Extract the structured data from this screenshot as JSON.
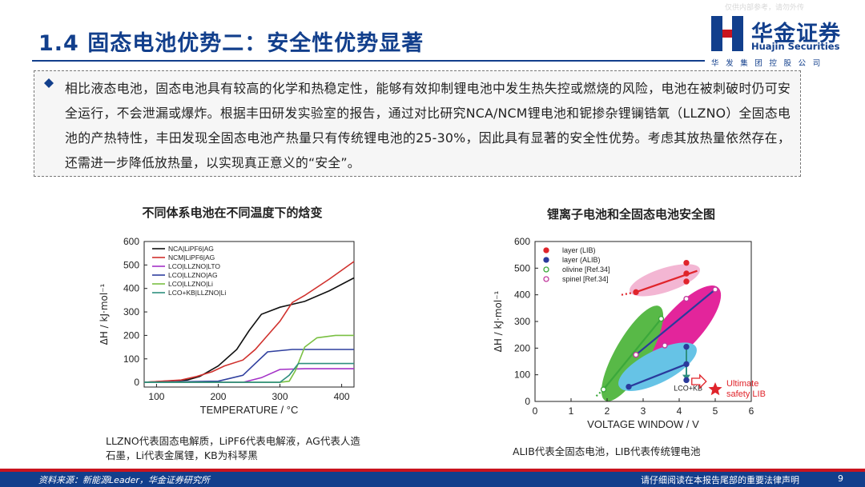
{
  "watermark": "仅供内部参考，请勿外传",
  "title": "1.4 固态电池优势二：安全性优势显著",
  "logo": {
    "cn": "华金证券",
    "en": "Huajin Securities",
    "sub": "华发集团控股公司"
  },
  "body_text": "相比液态电池，固态电池具有较高的化学和热稳定性，能够有效抑制锂电池中发生热失控或燃烧的风险，电池在被刺破时仍可安全运行，不会泄漏或爆炸。根据丰田研发实验室的报告，通过对比研究NCA/NCM锂电池和铌掺杂锂镧锆氧（LLZNO）全固态电池的产热特性，丰田发现全固态电池产热量只有传统锂电池的25-30%，因此具有显著的安全性优势。考虑其放热量依然存在，还需进一步降低放热量，以实现真正意义的“安全”。",
  "colors": {
    "brand": "#123f8c",
    "accent": "#c9141f"
  },
  "chart_data": [
    {
      "type": "line",
      "title": "不同体系电池在不同温度下的焓变",
      "xlabel": "TEMPERATURE / °C",
      "ylabel": "ΔH / kJ·mol⁻¹",
      "xlim": [
        80,
        420
      ],
      "ylim": [
        -20,
        600
      ],
      "xticks": [
        100,
        200,
        300,
        400
      ],
      "yticks": [
        0,
        100,
        200,
        300,
        400,
        500,
        600
      ],
      "legend_position": "top-left",
      "series": [
        {
          "name": "NCA|LiPF6|AG",
          "color": "#111111",
          "x": [
            80,
            150,
            170,
            200,
            230,
            250,
            270,
            300,
            340,
            380,
            420
          ],
          "y": [
            0,
            10,
            25,
            70,
            140,
            220,
            290,
            320,
            345,
            390,
            445
          ]
        },
        {
          "name": "NCM|LiPF6|AG",
          "color": "#d0312d",
          "x": [
            80,
            140,
            165,
            190,
            210,
            240,
            260,
            280,
            300,
            320,
            340,
            380,
            420
          ],
          "y": [
            0,
            10,
            25,
            45,
            70,
            95,
            140,
            200,
            260,
            340,
            370,
            440,
            515
          ]
        },
        {
          "name": "LCO|LLZNO|LTO",
          "color": "#a431c7",
          "x": [
            80,
            240,
            270,
            300,
            340,
            380,
            420
          ],
          "y": [
            0,
            0,
            20,
            55,
            58,
            58,
            58
          ]
        },
        {
          "name": "LCO|LLZNO|AG",
          "color": "#2f3f9e",
          "x": [
            80,
            200,
            240,
            260,
            280,
            320,
            360,
            420
          ],
          "y": [
            0,
            5,
            30,
            80,
            130,
            140,
            140,
            140
          ]
        },
        {
          "name": "LCO|LLZNO|Li",
          "color": "#7ac043",
          "x": [
            80,
            300,
            315,
            325,
            340,
            360,
            390,
            420
          ],
          "y": [
            0,
            0,
            5,
            50,
            150,
            190,
            200,
            200
          ]
        },
        {
          "name": "LCO+KB|LLZNO|Li",
          "color": "#2f8f7f",
          "x": [
            80,
            300,
            315,
            330,
            360,
            390,
            420
          ],
          "y": [
            0,
            0,
            30,
            80,
            80,
            80,
            80
          ]
        }
      ],
      "caption": "LLZNO代表固态电解质，LiPF6代表电解液，AG代表人造石墨，Li代表金属锂，KB为科琴黑"
    },
    {
      "type": "scatter",
      "title": "锂离子电池和全固态电池安全图",
      "xlabel": "VOLTAGE WINDOW / V",
      "ylabel": "ΔH / kJ·mol⁻¹",
      "xlim": [
        0,
        6
      ],
      "ylim": [
        0,
        600
      ],
      "xticks": [
        0,
        1,
        2,
        3,
        4,
        5,
        6
      ],
      "yticks": [
        0,
        100,
        200,
        300,
        400,
        500,
        600
      ],
      "legend_position": "top-left",
      "legend": [
        {
          "name": "layer (LIB)",
          "color": "#e0242b"
        },
        {
          "name": "layer (ALIB)",
          "color": "#2a3a9c"
        },
        {
          "name": "olivine [Ref.34]",
          "color": "#3ba83b"
        },
        {
          "name": "spinel [Ref.34]",
          "color": "#c23b9e"
        }
      ],
      "series": [
        {
          "name": "layer (LIB)",
          "color": "#e0242b",
          "points": [
            [
              2.8,
              410
            ],
            [
              4.2,
              520
            ],
            [
              4.2,
              480
            ],
            [
              4.2,
              450
            ]
          ]
        },
        {
          "name": "layer (ALIB)",
          "color": "#2a3a9c",
          "points": [
            [
              2.6,
              55
            ],
            [
              4.2,
              205
            ],
            [
              4.2,
              140
            ],
            [
              4.2,
              80
            ]
          ]
        },
        {
          "name": "olivine [Ref.34]",
          "color": "#3ba83b",
          "points": [
            [
              1.9,
              45
            ],
            [
              2.8,
              175
            ],
            [
              3.5,
              310
            ]
          ]
        },
        {
          "name": "spinel [Ref.34]",
          "color": "#c23b9e",
          "points": [
            [
              2.8,
              175
            ],
            [
              3.6,
              210
            ],
            [
              4.2,
              385
            ],
            [
              5.0,
              420
            ]
          ]
        }
      ],
      "annotations": [
        "LCO+KB",
        "Ultimate safety LIB"
      ],
      "caption": "ALIB代表全固态电池，LIB代表传统锂电池"
    }
  ],
  "footer": {
    "source": "资料来源：新能源Leader，华金证券研究所",
    "legal": "请仔细阅读在本报告尾部的重要法律声明",
    "page": "9"
  }
}
